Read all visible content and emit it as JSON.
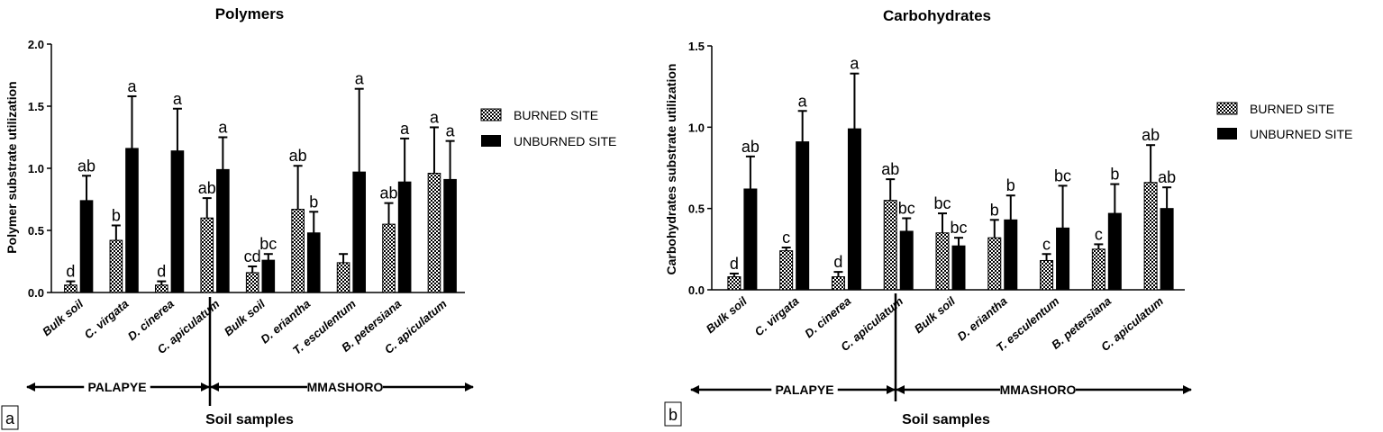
{
  "legend": {
    "burned": "BURNED SITE",
    "unburned": "UNBURNED SITE"
  },
  "colors": {
    "unburned_fill": "#000000",
    "burned_hatch": "#000000",
    "background": "#ffffff"
  },
  "chart_data": [
    {
      "type": "bar",
      "panel_label": "a",
      "title": "Polymers",
      "ylabel": "Polymer substrate utilization",
      "xlabel": "Soil samples",
      "ylim": [
        0,
        2.0
      ],
      "yticks": [
        "0.0",
        "0.5",
        "1.0",
        "1.5",
        "2.0"
      ],
      "categories": [
        "Bulk soil",
        "C. virgata",
        "D. cinerea",
        "C. apiculatum",
        "Bulk soil",
        "D. eriantha",
        "T. esculentum",
        "B. petersiana",
        "C. apiculatum"
      ],
      "site_groups": [
        "PALAPYE",
        "MMASHORO"
      ],
      "site_group_sizes": [
        4,
        5
      ],
      "series": [
        {
          "name": "BURNED SITE",
          "values": [
            0.06,
            0.42,
            0.06,
            0.6,
            0.16,
            0.67,
            0.24,
            0.55,
            0.96
          ],
          "errors": [
            0.03,
            0.12,
            0.03,
            0.16,
            0.05,
            0.35,
            0.07,
            0.17,
            0.37
          ],
          "letters": [
            "d",
            "b",
            "d",
            "ab",
            "cd",
            "ab",
            "",
            "ab",
            "a"
          ]
        },
        {
          "name": "UNBURNED SITE",
          "values": [
            0.74,
            1.16,
            1.14,
            0.99,
            0.26,
            0.48,
            0.97,
            0.89,
            0.91
          ],
          "errors": [
            0.2,
            0.42,
            0.34,
            0.26,
            0.05,
            0.17,
            0.67,
            0.35,
            0.31
          ],
          "letters": [
            "ab",
            "a",
            "a",
            "a",
            "bc",
            "b",
            "a",
            "a",
            "a"
          ]
        }
      ]
    },
    {
      "type": "bar",
      "panel_label": "b",
      "title": "Carbohydrates",
      "ylabel": "Carbohydrates substrate utilization",
      "xlabel": "Soil samples",
      "ylim": [
        0,
        1.5
      ],
      "yticks": [
        "0.0",
        "0.5",
        "1.0",
        "1.5"
      ],
      "categories": [
        "Bulk soil",
        "C. virgata",
        "D. cinerea",
        "C. apiculatum",
        "Bulk soil",
        "D. eriantha",
        "T. esculentum",
        "B. petersiana",
        "C. apiculatum"
      ],
      "site_groups": [
        "PALAPYE",
        "MMASHORO"
      ],
      "site_group_sizes": [
        4,
        5
      ],
      "series": [
        {
          "name": "BURNED SITE",
          "values": [
            0.08,
            0.24,
            0.08,
            0.55,
            0.35,
            0.32,
            0.18,
            0.25,
            0.66
          ],
          "errors": [
            0.02,
            0.02,
            0.03,
            0.13,
            0.12,
            0.11,
            0.04,
            0.03,
            0.23
          ],
          "letters": [
            "d",
            "c",
            "d",
            "ab",
            "bc",
            "b",
            "c",
            "c",
            "ab"
          ]
        },
        {
          "name": "UNBURNED SITE",
          "values": [
            0.62,
            0.91,
            0.99,
            0.36,
            0.27,
            0.43,
            0.38,
            0.47,
            0.5
          ],
          "errors": [
            0.2,
            0.19,
            0.34,
            0.08,
            0.05,
            0.15,
            0.26,
            0.18,
            0.13
          ],
          "letters": [
            "ab",
            "a",
            "a",
            "bc",
            "bc",
            "b",
            "bc",
            "b",
            "ab"
          ]
        }
      ]
    }
  ]
}
